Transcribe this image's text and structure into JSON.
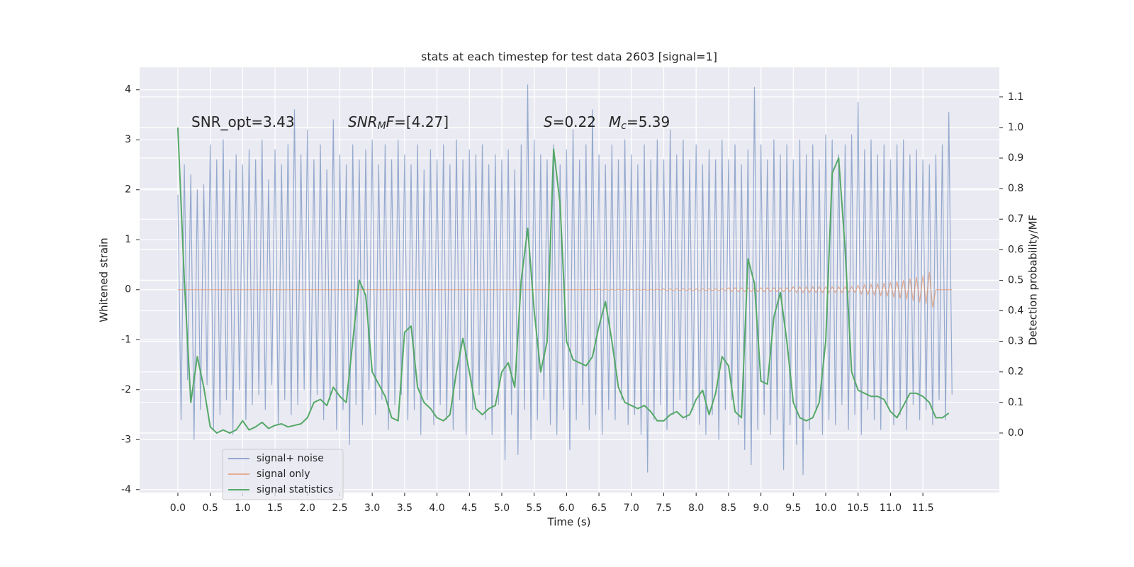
{
  "chart_data": {
    "type": "line",
    "title": "stats at each timestep for test data 2603 [signal=1]",
    "xlabel": "Time (s)",
    "ylabel": "Whitened strain",
    "y2label": "Detection probability/MF",
    "annotations": [
      {
        "parts": [
          {
            "text": "SNR_opt=3.43",
            "style": "normal"
          }
        ]
      },
      {
        "parts": [
          {
            "text": "SNR",
            "style": "italic"
          },
          {
            "text": "M",
            "style": "italic-sub"
          },
          {
            "text": "F",
            "style": "italic"
          },
          {
            "text": "=[4.27]",
            "style": "normal"
          }
        ]
      },
      {
        "parts": [
          {
            "text": "S",
            "style": "italic"
          },
          {
            "text": "=0.22",
            "style": "normal"
          }
        ]
      },
      {
        "parts": [
          {
            "text": "M",
            "style": "italic"
          },
          {
            "text": "c",
            "style": "italic-sub"
          },
          {
            "text": "=5.39",
            "style": "normal"
          }
        ]
      }
    ],
    "x": [
      0,
      0.05,
      0.1,
      0.15,
      0.2,
      0.25,
      0.3,
      0.35,
      0.4,
      0.45,
      0.5,
      0.55,
      0.6,
      0.65,
      0.7,
      0.75,
      0.8,
      0.85,
      0.9,
      0.95,
      1,
      1.05,
      1.1,
      1.15,
      1.2,
      1.25,
      1.3,
      1.35,
      1.4,
      1.45,
      1.5,
      1.55,
      1.6,
      1.65,
      1.7,
      1.75,
      1.8,
      1.85,
      1.9,
      1.95,
      2,
      2.05,
      2.1,
      2.15,
      2.2,
      2.25,
      2.3,
      2.35,
      2.4,
      2.45,
      2.5,
      2.55,
      2.6,
      2.65,
      2.7,
      2.75,
      2.8,
      2.85,
      2.9,
      2.95,
      3,
      3.05,
      3.1,
      3.15,
      3.2,
      3.25,
      3.3,
      3.35,
      3.4,
      3.45,
      3.5,
      3.55,
      3.6,
      3.65,
      3.7,
      3.75,
      3.8,
      3.85,
      3.9,
      3.95,
      4,
      4.05,
      4.1,
      4.15,
      4.2,
      4.25,
      4.3,
      4.35,
      4.4,
      4.45,
      4.5,
      4.55,
      4.6,
      4.65,
      4.7,
      4.75,
      4.8,
      4.85,
      4.9,
      4.95,
      5,
      5.05,
      5.1,
      5.15,
      5.2,
      5.25,
      5.3,
      5.35,
      5.4,
      5.45,
      5.5,
      5.55,
      5.6,
      5.65,
      5.7,
      5.75,
      5.8,
      5.85,
      5.9,
      5.95,
      6,
      6.05,
      6.1,
      6.15,
      6.2,
      6.25,
      6.3,
      6.35,
      6.4,
      6.45,
      6.5,
      6.55,
      6.6,
      6.65,
      6.7,
      6.75,
      6.8,
      6.85,
      6.9,
      6.95,
      7,
      7.05,
      7.1,
      7.15,
      7.2,
      7.25,
      7.3,
      7.35,
      7.4,
      7.45,
      7.5,
      7.55,
      7.6,
      7.65,
      7.7,
      7.75,
      7.8,
      7.85,
      7.9,
      7.95,
      8,
      8.05,
      8.1,
      8.15,
      8.2,
      8.25,
      8.3,
      8.35,
      8.4,
      8.45,
      8.5,
      8.55,
      8.6,
      8.65,
      8.7,
      8.75,
      8.8,
      8.85,
      8.9,
      8.95,
      9,
      9.05,
      9.1,
      9.15,
      9.2,
      9.25,
      9.3,
      9.35,
      9.4,
      9.45,
      9.5,
      9.55,
      9.6,
      9.65,
      9.7,
      9.75,
      9.8,
      9.85,
      9.9,
      9.95,
      10,
      10.05,
      10.1,
      10.15,
      10.2,
      10.25,
      10.3,
      10.35,
      10.4,
      10.45,
      10.5,
      10.55,
      10.6,
      10.65,
      10.7,
      10.75,
      10.8,
      10.85,
      10.9,
      10.95,
      11,
      11.05,
      11.1,
      11.15,
      11.2,
      11.25,
      11.3,
      11.35,
      11.4,
      11.45,
      11.5,
      11.55,
      11.6,
      11.65,
      11.7,
      11.75,
      11.8,
      11.85,
      11.9,
      11.95
    ],
    "series": [
      {
        "name": "signal+ noise",
        "color": "#4c72b0",
        "opacity": 0.55,
        "values": [
          1.9,
          -2.6,
          2.5,
          -1.8,
          2.3,
          -3.0,
          2.0,
          -2.4,
          2.1,
          -1.9,
          2.9,
          -2.8,
          2.6,
          -2.5,
          3.0,
          -2.2,
          2.4,
          -2.9,
          2.7,
          -2.0,
          2.5,
          -2.6,
          2.8,
          -2.3,
          2.6,
          -2.1,
          3.0,
          -2.4,
          2.2,
          -1.9,
          2.8,
          -2.7,
          2.5,
          -2.2,
          2.9,
          -2.5,
          3.6,
          -2.3,
          2.7,
          -2.0,
          3.2,
          -2.4,
          2.6,
          -2.1,
          2.9,
          -2.6,
          2.4,
          -2.2,
          3.4,
          -2.8,
          2.7,
          -2.4,
          2.5,
          -3.1,
          2.9,
          -2.3,
          2.6,
          -2.7,
          2.8,
          -2.0,
          3.0,
          -2.5,
          2.5,
          -2.2,
          2.9,
          -2.8,
          2.6,
          -2.3,
          3.0,
          -2.1,
          2.7,
          -2.6,
          2.5,
          -2.4,
          2.9,
          -2.9,
          2.4,
          -2.2,
          2.8,
          -2.7,
          2.6,
          -2.3,
          2.9,
          -2.6,
          2.5,
          -2.8,
          3.0,
          -2.2,
          2.6,
          -2.9,
          2.8,
          -2.4,
          2.7,
          -2.1,
          2.9,
          -2.6,
          2.5,
          -2.9,
          2.7,
          -2.3,
          2.6,
          -3.4,
          2.8,
          -2.5,
          2.4,
          -3.3,
          2.9,
          -2.4,
          4.1,
          -3.0,
          3.0,
          -2.6,
          2.7,
          -2.2,
          2.6,
          -2.7,
          2.9,
          -2.9,
          2.5,
          -2.4,
          2.8,
          -3.2,
          3.2,
          -2.6,
          2.6,
          -2.3,
          2.9,
          -2.8,
          3.6,
          -2.5,
          2.7,
          -2.9,
          2.5,
          -2.4,
          2.9,
          -2.6,
          2.6,
          -2.2,
          3.0,
          -2.7,
          2.7,
          -2.5,
          2.5,
          -2.9,
          2.9,
          -3.65,
          2.6,
          -2.6,
          3.0,
          -2.3,
          2.6,
          -2.8,
          3.2,
          -2.5,
          2.7,
          -2.2,
          3.0,
          -2.6,
          2.6,
          -2.4,
          2.9,
          -2.7,
          2.5,
          -2.9,
          2.8,
          -2.5,
          2.6,
          -3.0,
          3.0,
          -2.4,
          2.6,
          -2.2,
          2.9,
          -2.7,
          2.5,
          -3.2,
          2.8,
          -3.5,
          4.05,
          -2.8,
          2.9,
          -2.5,
          2.6,
          -2.9,
          3.0,
          -2.6,
          2.7,
          -3.6,
          2.9,
          -2.7,
          2.6,
          -3.1,
          3.0,
          -3.7,
          2.7,
          -2.8,
          2.9,
          -2.4,
          2.6,
          -2.9,
          3.1,
          -2.6,
          3.0,
          -2.7,
          2.7,
          -2.3,
          2.9,
          -2.8,
          3.1,
          -2.5,
          3.75,
          -2.9,
          2.8,
          -2.4,
          3.0,
          -2.6,
          2.7,
          -2.8,
          2.9,
          -2.3,
          2.6,
          -2.7,
          2.9,
          -2.5,
          3.0,
          -2.8,
          2.7,
          -2.3,
          2.8,
          -2.6,
          2.6,
          -2.4,
          2.5,
          -2.7,
          2.7,
          -2.2,
          2.9,
          -2.6,
          3.55,
          -2.1
        ]
      },
      {
        "name": "signal only",
        "color": "#dd8452",
        "opacity": 0.6,
        "values": [
          0,
          0,
          0,
          0,
          0,
          0,
          0,
          0,
          0,
          0,
          0,
          0,
          0,
          0,
          0,
          0,
          0,
          0,
          0,
          0,
          0,
          0,
          0,
          0,
          0,
          0,
          0,
          0,
          0,
          0,
          0,
          0,
          0,
          0,
          0,
          0,
          0,
          0,
          0,
          0,
          0,
          0,
          0,
          0,
          0,
          0,
          0,
          0,
          0,
          0,
          0,
          0,
          0,
          0,
          0,
          0,
          0,
          0,
          0,
          0,
          0,
          0,
          0,
          0,
          0,
          0,
          0,
          0,
          0,
          0,
          0,
          0,
          0,
          0,
          0,
          0,
          0,
          0,
          0,
          0,
          0,
          0,
          0,
          0,
          0,
          0,
          0,
          0,
          0,
          0,
          0,
          0,
          0,
          0,
          0,
          0,
          0,
          0,
          0,
          0,
          0,
          0,
          0,
          0,
          0,
          0,
          0,
          0,
          0,
          0,
          0,
          0,
          0,
          0,
          0,
          0,
          0,
          0,
          0,
          0,
          0,
          0,
          0,
          0,
          0,
          0,
          0,
          0,
          0,
          0,
          0.01,
          -0.01,
          0.01,
          -0.01,
          0.01,
          -0.01,
          0.01,
          -0.01,
          0.01,
          -0.01,
          0.01,
          -0.01,
          0.01,
          -0.01,
          0.01,
          -0.01,
          0.01,
          -0.01,
          0.01,
          -0.01,
          0.02,
          -0.02,
          0.02,
          -0.02,
          0.02,
          -0.02,
          0.02,
          -0.02,
          0.02,
          -0.02,
          0.02,
          -0.02,
          0.02,
          -0.02,
          0.02,
          -0.02,
          0.02,
          -0.02,
          0.02,
          -0.02,
          0.04,
          -0.04,
          0.04,
          -0.04,
          0.04,
          -0.04,
          0.04,
          -0.04,
          0.04,
          -0.04,
          0.04,
          -0.04,
          0.04,
          -0.04,
          0.04,
          -0.04,
          0.04,
          -0.04,
          0.04,
          -0.04,
          0.06,
          -0.06,
          0.06,
          -0.06,
          0.06,
          -0.06,
          0.06,
          -0.06,
          0.06,
          -0.06,
          0.06,
          -0.06,
          0.06,
          -0.06,
          0.06,
          -0.06,
          0.06,
          -0.06,
          0.06,
          -0.06,
          0.09,
          -0.09,
          0.1,
          -0.1,
          0.11,
          -0.11,
          0.12,
          -0.12,
          0.13,
          -0.13,
          0.15,
          -0.15,
          0.17,
          -0.17,
          0.19,
          -0.19,
          0.22,
          -0.22,
          0.25,
          -0.25,
          0.28,
          -0.28,
          0.35,
          -0.35,
          0,
          0,
          0,
          0,
          0,
          0
        ]
      },
      {
        "name": "signal statistics",
        "color": "#55a868",
        "opacity": 1,
        "axis": "y2",
        "x": [
          0,
          0.1,
          0.2,
          0.3,
          0.4,
          0.5,
          0.6,
          0.7,
          0.8,
          0.9,
          1,
          1.1,
          1.2,
          1.3,
          1.4,
          1.5,
          1.6,
          1.7,
          1.8,
          1.9,
          2,
          2.1,
          2.2,
          2.3,
          2.4,
          2.5,
          2.6,
          2.7,
          2.8,
          2.9,
          3,
          3.1,
          3.2,
          3.3,
          3.4,
          3.5,
          3.6,
          3.7,
          3.8,
          3.9,
          4,
          4.1,
          4.2,
          4.3,
          4.4,
          4.5,
          4.6,
          4.7,
          4.8,
          4.9,
          5,
          5.1,
          5.2,
          5.3,
          5.4,
          5.5,
          5.6,
          5.7,
          5.8,
          5.9,
          6,
          6.1,
          6.2,
          6.3,
          6.4,
          6.5,
          6.6,
          6.7,
          6.8,
          6.9,
          7,
          7.1,
          7.2,
          7.3,
          7.4,
          7.5,
          7.6,
          7.7,
          7.8,
          7.9,
          8,
          8.1,
          8.2,
          8.3,
          8.4,
          8.5,
          8.6,
          8.7,
          8.8,
          8.9,
          9,
          9.1,
          9.2,
          9.3,
          9.4,
          9.5,
          9.6,
          9.7,
          9.8,
          9.9,
          10,
          10.1,
          10.2,
          10.3,
          10.4,
          10.5,
          10.6,
          10.7,
          10.8,
          10.9,
          11,
          11.1,
          11.2,
          11.3,
          11.4,
          11.5,
          11.6,
          11.7,
          11.8,
          11.9
        ],
        "values": [
          1.0,
          0.5,
          0.1,
          0.25,
          0.15,
          0.02,
          0.0,
          0.01,
          0.0,
          0.01,
          0.04,
          0.01,
          0.02,
          0.035,
          0.015,
          0.025,
          0.03,
          0.02,
          0.025,
          0.03,
          0.05,
          0.1,
          0.11,
          0.09,
          0.15,
          0.12,
          0.1,
          0.3,
          0.5,
          0.45,
          0.2,
          0.16,
          0.12,
          0.05,
          0.04,
          0.33,
          0.35,
          0.15,
          0.1,
          0.08,
          0.05,
          0.04,
          0.06,
          0.2,
          0.31,
          0.2,
          0.08,
          0.06,
          0.08,
          0.09,
          0.2,
          0.23,
          0.15,
          0.5,
          0.67,
          0.4,
          0.2,
          0.3,
          0.93,
          0.75,
          0.3,
          0.24,
          0.23,
          0.22,
          0.25,
          0.35,
          0.43,
          0.3,
          0.15,
          0.1,
          0.09,
          0.08,
          0.09,
          0.07,
          0.04,
          0.04,
          0.06,
          0.07,
          0.05,
          0.06,
          0.11,
          0.14,
          0.06,
          0.13,
          0.25,
          0.22,
          0.07,
          0.05,
          0.57,
          0.49,
          0.17,
          0.16,
          0.38,
          0.46,
          0.3,
          0.1,
          0.05,
          0.04,
          0.05,
          0.1,
          0.3,
          0.85,
          0.9,
          0.6,
          0.2,
          0.14,
          0.13,
          0.12,
          0.12,
          0.11,
          0.07,
          0.05,
          0.09,
          0.13,
          0.13,
          0.12,
          0.1,
          0.05,
          0.05,
          0.065
        ]
      }
    ],
    "xlim": [
      -0.59,
      12.68
    ],
    "xticks": [
      {
        "value": 0,
        "label": "0.0"
      },
      {
        "value": 0.5,
        "label": "0.5"
      },
      {
        "value": 1,
        "label": "1.0"
      },
      {
        "value": 1.5,
        "label": "1.5"
      },
      {
        "value": 2,
        "label": "2.0"
      },
      {
        "value": 2.5,
        "label": "2.5"
      },
      {
        "value": 3,
        "label": "3.0"
      },
      {
        "value": 3.5,
        "label": "3.5"
      },
      {
        "value": 4,
        "label": "4.0"
      },
      {
        "value": 4.5,
        "label": "4.5"
      },
      {
        "value": 5,
        "label": "5.0"
      },
      {
        "value": 5.5,
        "label": "5.5"
      },
      {
        "value": 6,
        "label": "6.0"
      },
      {
        "value": 6.5,
        "label": "6.5"
      },
      {
        "value": 7,
        "label": "7.0"
      },
      {
        "value": 7.5,
        "label": "7.5"
      },
      {
        "value": 8,
        "label": "8.0"
      },
      {
        "value": 8.5,
        "label": "8.5"
      },
      {
        "value": 9,
        "label": "9.0"
      },
      {
        "value": 9.5,
        "label": "9.5"
      },
      {
        "value": 10,
        "label": "10.0"
      },
      {
        "value": 10.5,
        "label": "10.5"
      },
      {
        "value": 11,
        "label": "11.0"
      },
      {
        "value": 11.5,
        "label": "11.5"
      }
    ],
    "ylim": [
      -4.06,
      4.45
    ],
    "yticks": [
      -4,
      -3,
      -2,
      -1,
      0,
      1,
      2,
      3,
      4
    ],
    "y2lim": [
      -0.195,
      1.197
    ],
    "y2ticks": [
      {
        "value": 0,
        "label": "0.0"
      },
      {
        "value": 0.1,
        "label": "0.1"
      },
      {
        "value": 0.2,
        "label": "0.2"
      },
      {
        "value": 0.3,
        "label": "0.3"
      },
      {
        "value": 0.4,
        "label": "0.4"
      },
      {
        "value": 0.5,
        "label": "0.5"
      },
      {
        "value": 0.6,
        "label": "0.6"
      },
      {
        "value": 0.7,
        "label": "0.7"
      },
      {
        "value": 0.8,
        "label": "0.8"
      },
      {
        "value": 0.9,
        "label": "0.9"
      },
      {
        "value": 1,
        "label": "1.0"
      },
      {
        "value": 1.1,
        "label": "1.1"
      }
    ],
    "grid": true,
    "legend": "lower left"
  }
}
